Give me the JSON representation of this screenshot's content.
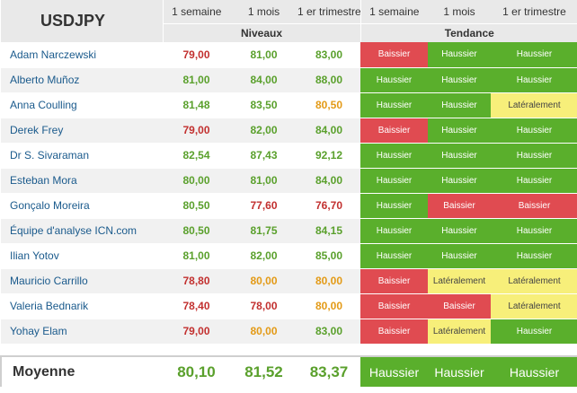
{
  "header": {
    "symbol": "USDJPY",
    "periods": [
      "1 semaine",
      "1 mois",
      "1 er trimestre",
      "1 semaine",
      "1 mois",
      "1 er trimestre"
    ],
    "group_levels": "Niveaux",
    "group_trend": "Tendance"
  },
  "colors": {
    "down": "#e04b51",
    "up": "#5aaf2c",
    "flat": "#f7ef7a",
    "text_green": "#5aa02c",
    "text_red": "#c2302f",
    "text_orange": "#e39a16",
    "text_trend_on_dark": "#ffffff",
    "text_trend_on_flat": "#444444"
  },
  "rows": [
    {
      "name": "Adam Narczewski",
      "levels": [
        "79,00",
        "81,00",
        "83,00"
      ],
      "levelColors": [
        "red",
        "green",
        "green"
      ],
      "trends": [
        "Baissier",
        "Haussier",
        "Haussier"
      ]
    },
    {
      "name": "Alberto Muñoz",
      "levels": [
        "81,00",
        "84,00",
        "88,00"
      ],
      "levelColors": [
        "green",
        "green",
        "green"
      ],
      "trends": [
        "Haussier",
        "Haussier",
        "Haussier"
      ]
    },
    {
      "name": "Anna Coulling",
      "levels": [
        "81,48",
        "83,50",
        "80,50"
      ],
      "levelColors": [
        "green",
        "green",
        "orange"
      ],
      "trends": [
        "Haussier",
        "Haussier",
        "Latéralement"
      ]
    },
    {
      "name": "Derek Frey",
      "levels": [
        "79,00",
        "82,00",
        "84,00"
      ],
      "levelColors": [
        "red",
        "green",
        "green"
      ],
      "trends": [
        "Baissier",
        "Haussier",
        "Haussier"
      ]
    },
    {
      "name": "Dr S. Sivaraman",
      "levels": [
        "82,54",
        "87,43",
        "92,12"
      ],
      "levelColors": [
        "green",
        "green",
        "green"
      ],
      "trends": [
        "Haussier",
        "Haussier",
        "Haussier"
      ]
    },
    {
      "name": "Esteban Mora",
      "levels": [
        "80,00",
        "81,00",
        "84,00"
      ],
      "levelColors": [
        "green",
        "green",
        "green"
      ],
      "trends": [
        "Haussier",
        "Haussier",
        "Haussier"
      ]
    },
    {
      "name": "Gonçalo Moreira",
      "levels": [
        "80,50",
        "77,60",
        "76,70"
      ],
      "levelColors": [
        "green",
        "red",
        "red"
      ],
      "trends": [
        "Haussier",
        "Baissier",
        "Baissier"
      ]
    },
    {
      "name": "Équipe d'analyse ICN.com",
      "levels": [
        "80,50",
        "81,75",
        "84,15"
      ],
      "levelColors": [
        "green",
        "green",
        "green"
      ],
      "trends": [
        "Haussier",
        "Haussier",
        "Haussier"
      ]
    },
    {
      "name": "Ilian Yotov",
      "levels": [
        "81,00",
        "82,00",
        "85,00"
      ],
      "levelColors": [
        "green",
        "green",
        "green"
      ],
      "trends": [
        "Haussier",
        "Haussier",
        "Haussier"
      ]
    },
    {
      "name": "Mauricio Carrillo",
      "levels": [
        "78,80",
        "80,00",
        "80,00"
      ],
      "levelColors": [
        "red",
        "orange",
        "orange"
      ],
      "trends": [
        "Baissier",
        "Latéralement",
        "Latéralement"
      ]
    },
    {
      "name": "Valeria Bednarik",
      "levels": [
        "78,40",
        "78,00",
        "80,00"
      ],
      "levelColors": [
        "red",
        "red",
        "orange"
      ],
      "trends": [
        "Baissier",
        "Baissier",
        "Latéralement"
      ]
    },
    {
      "name": "Yohay Elam",
      "levels": [
        "79,00",
        "80,00",
        "83,00"
      ],
      "levelColors": [
        "red",
        "orange",
        "green"
      ],
      "trends": [
        "Baissier",
        "Latéralement",
        "Haussier"
      ]
    }
  ],
  "footer": {
    "label": "Moyenne",
    "levels": [
      "80,10",
      "81,52",
      "83,37"
    ],
    "trends": [
      "Haussier",
      "Haussier",
      "Haussier"
    ]
  }
}
